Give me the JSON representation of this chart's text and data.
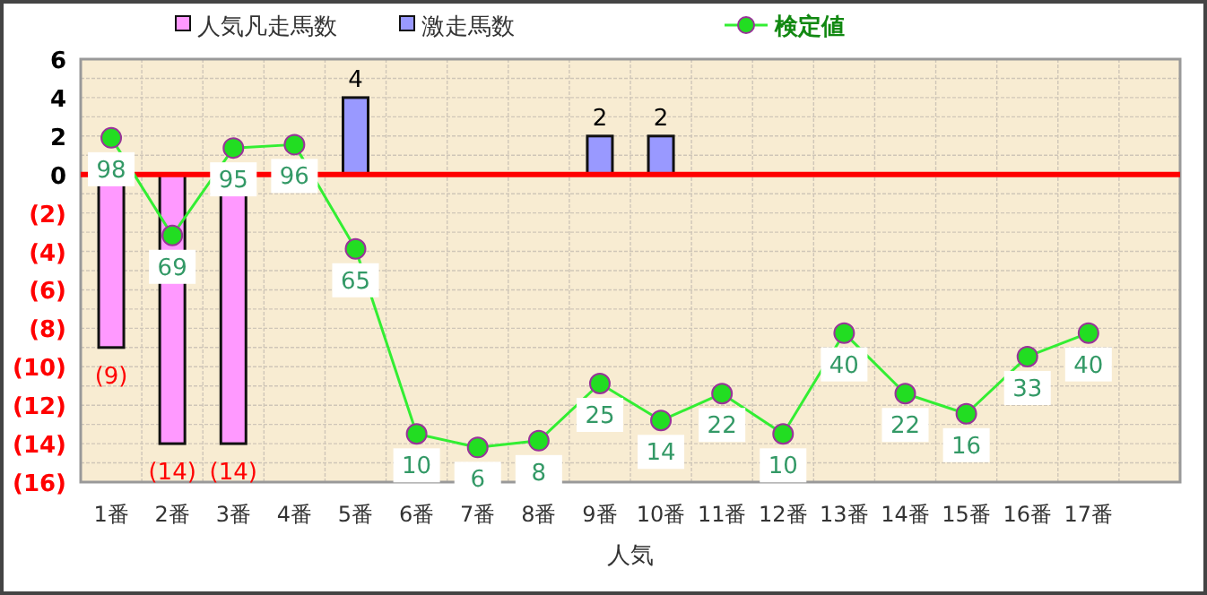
{
  "chart_data": {
    "type": "bar",
    "xlabel": "人気",
    "categories": [
      "1番",
      "2番",
      "3番",
      "4番",
      "5番",
      "6番",
      "7番",
      "8番",
      "9番",
      "10番",
      "11番",
      "12番",
      "13番",
      "14番",
      "15番",
      "16番",
      "17番",
      null
    ],
    "series": [
      {
        "name": "人気凡走馬数",
        "color": "#ff99ff",
        "values": [
          -9,
          -14,
          -14,
          null,
          null,
          null,
          null,
          null,
          null,
          null,
          null,
          null,
          null,
          null,
          null,
          null,
          null,
          null
        ],
        "value_labels": [
          "(9)",
          "(14)",
          "(14)",
          null,
          null,
          null,
          null,
          null,
          null,
          null,
          null,
          null,
          null,
          null,
          null,
          null,
          null,
          null
        ]
      },
      {
        "name": "激走馬数",
        "color": "#9999ff",
        "values": [
          null,
          null,
          null,
          null,
          4,
          null,
          null,
          null,
          2,
          2,
          null,
          null,
          null,
          null,
          null,
          null,
          null,
          null
        ],
        "value_labels": [
          null,
          null,
          null,
          null,
          "4",
          null,
          null,
          null,
          "2",
          "2",
          null,
          null,
          null,
          null,
          null,
          null,
          null,
          null
        ]
      },
      {
        "name": "検定値",
        "type": "line",
        "axis": "y2",
        "color": "#33ee33",
        "marker": "circle",
        "values": [
          98,
          69,
          95,
          96,
          65,
          10,
          6,
          8,
          25,
          14,
          22,
          10,
          40,
          22,
          16,
          33,
          40,
          null
        ],
        "value_labels": [
          "98",
          "69",
          "95",
          "96",
          "65",
          "10",
          "6",
          "8",
          "25",
          "14",
          "22",
          "10",
          "40",
          "22",
          "16",
          "33",
          "40",
          null
        ]
      }
    ],
    "ylim": [
      -16,
      6
    ],
    "yticks": [
      {
        "value": -16,
        "label": "(16)"
      },
      {
        "value": -14,
        "label": "(14)"
      },
      {
        "value": -12,
        "label": "(12)"
      },
      {
        "value": -10,
        "label": "(10)"
      },
      {
        "value": -8,
        "label": "(8)"
      },
      {
        "value": -6,
        "label": "(6)"
      },
      {
        "value": -4,
        "label": "(4)"
      },
      {
        "value": -2,
        "label": "(2)"
      },
      0,
      2,
      4,
      6
    ],
    "y2lim": [
      -4.3,
      121.4
    ],
    "ref_lines": [
      {
        "axis": "y",
        "value": 0,
        "color": "#ff0000"
      }
    ],
    "grid": true,
    "legend": "top"
  }
}
